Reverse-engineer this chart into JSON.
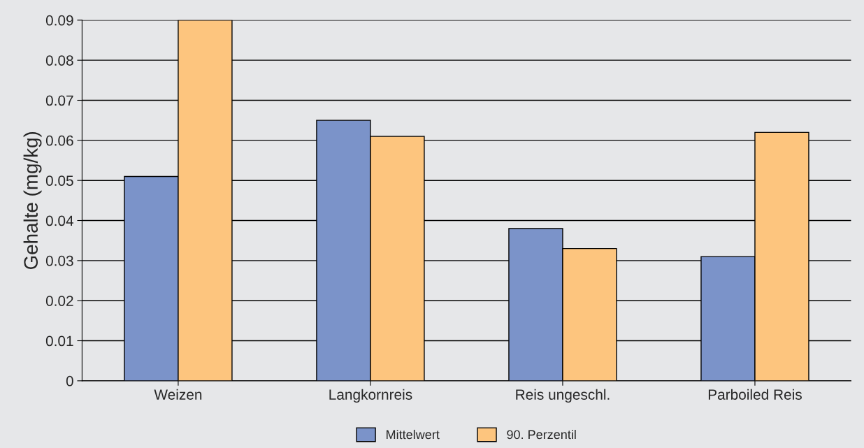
{
  "chart_data": {
    "type": "bar",
    "ylabel": "Gehalte (mg/kg)",
    "categories": [
      "Weizen",
      "Langkornreis",
      "Reis ungeschl.",
      "Parboiled Reis"
    ],
    "series": [
      {
        "name": "Mittelwert",
        "color": "#7b93c9",
        "values": [
          0.051,
          0.065,
          0.038,
          0.031
        ]
      },
      {
        "name": "90. Perzentil",
        "color": "#fdc57e",
        "values": [
          0.09,
          0.061,
          0.033,
          0.062
        ]
      }
    ],
    "ylim": [
      0,
      0.09
    ],
    "yticks": [
      0,
      0.01,
      0.02,
      0.03,
      0.04,
      0.05,
      0.06,
      0.07,
      0.08,
      0.09
    ],
    "grid": "y",
    "legend": "bottom"
  }
}
